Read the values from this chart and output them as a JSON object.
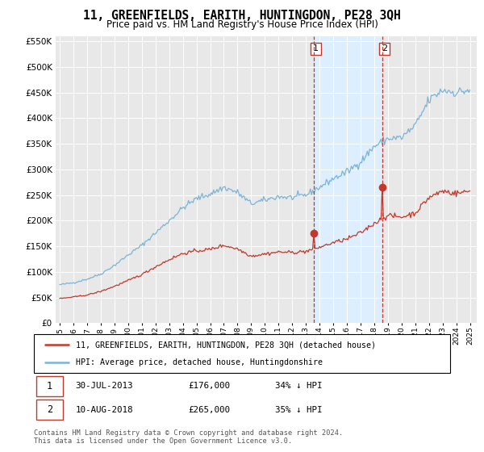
{
  "title": "11, GREENFIELDS, EARITH, HUNTINGDON, PE28 3QH",
  "subtitle": "Price paid vs. HM Land Registry's House Price Index (HPI)",
  "hpi_label": "HPI: Average price, detached house, Huntingdonshire",
  "property_label": "11, GREENFIELDS, EARITH, HUNTINGDON, PE28 3QH (detached house)",
  "footer": "Contains HM Land Registry data © Crown copyright and database right 2024.\nThis data is licensed under the Open Government Licence v3.0.",
  "purchase1_date": 2013.58,
  "purchase1_price": 176000,
  "purchase2_date": 2018.61,
  "purchase2_price": 265000,
  "hpi_color": "#7ab4d8",
  "property_color": "#c0392b",
  "shade_color": "#ddeeff",
  "background_color": "#e8e8e8",
  "grid_color": "#ffffff",
  "ylim": [
    0,
    560000
  ],
  "xlim": [
    1994.7,
    2025.5
  ],
  "yticks": [
    0,
    50000,
    100000,
    150000,
    200000,
    250000,
    300000,
    350000,
    400000,
    450000,
    500000,
    550000
  ],
  "xtick_years": [
    1995,
    1996,
    1997,
    1998,
    1999,
    2000,
    2001,
    2002,
    2003,
    2004,
    2005,
    2006,
    2007,
    2008,
    2009,
    2010,
    2011,
    2012,
    2013,
    2014,
    2015,
    2016,
    2017,
    2018,
    2019,
    2020,
    2021,
    2022,
    2023,
    2024,
    2025
  ]
}
